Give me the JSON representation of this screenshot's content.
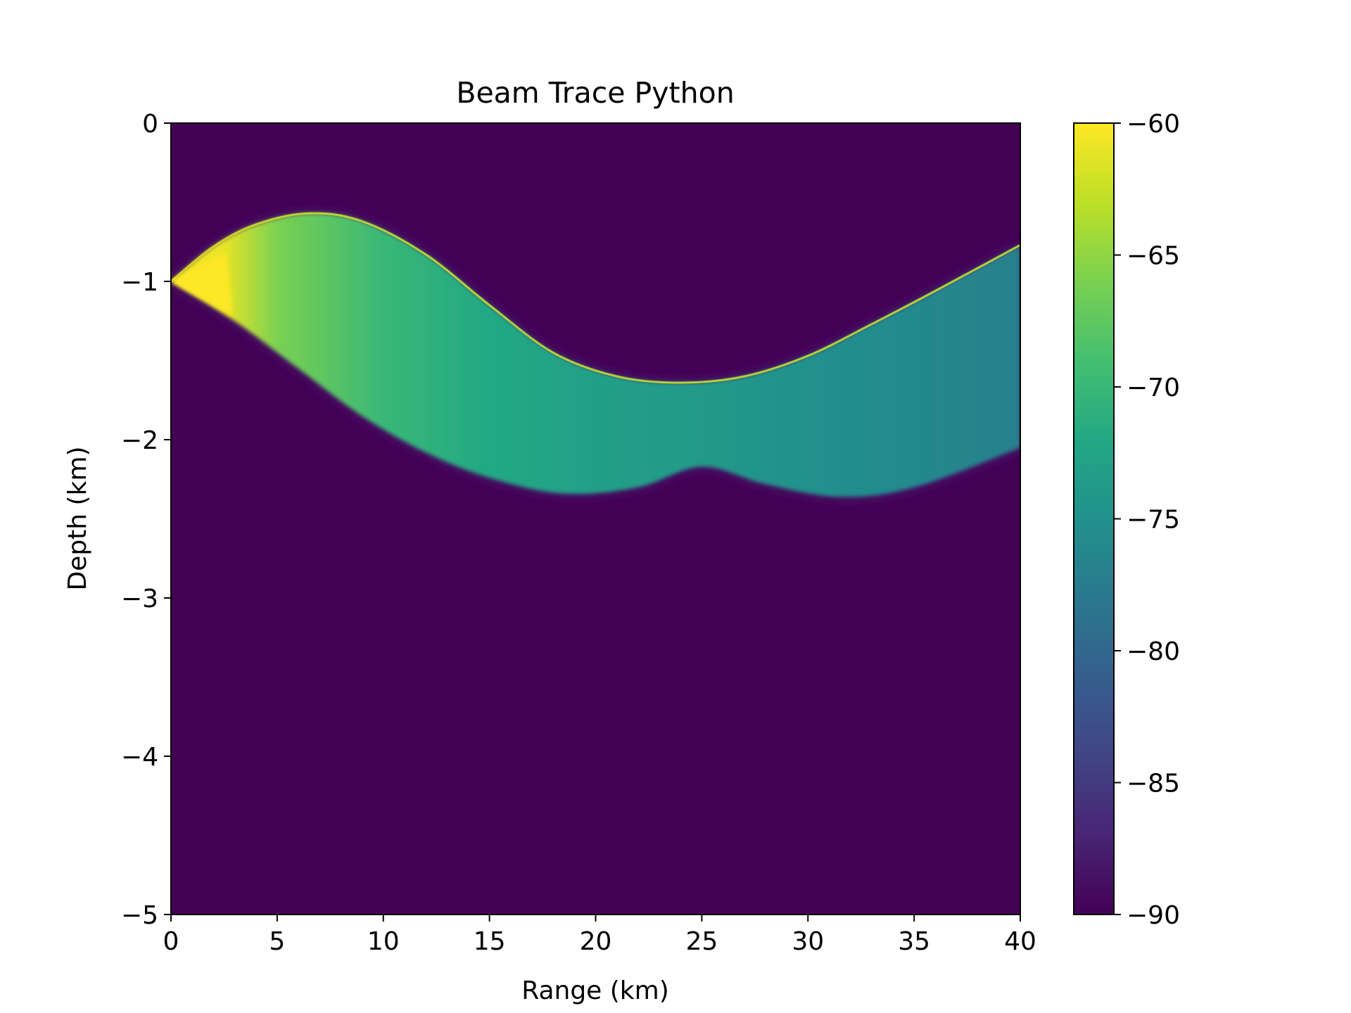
{
  "chart_data": {
    "type": "heatmap",
    "title": "Beam Trace Python",
    "xlabel": "Range (km)",
    "ylabel": "Depth (km)",
    "xlim": [
      0,
      40
    ],
    "ylim": [
      -5,
      0
    ],
    "x_ticks": [
      0,
      5,
      10,
      15,
      20,
      25,
      30,
      35,
      40
    ],
    "y_ticks": [
      0,
      -1,
      -2,
      -3,
      -4,
      -5
    ],
    "x_tick_labels": [
      "0",
      "5",
      "10",
      "15",
      "20",
      "25",
      "30",
      "35",
      "40"
    ],
    "y_tick_labels": [
      "0",
      "−1",
      "−2",
      "−3",
      "−4",
      "−5"
    ],
    "colormap": "viridis",
    "clim": [
      -90,
      -60
    ],
    "colorbar_ticks": [
      -60,
      -65,
      -70,
      -75,
      -80,
      -85,
      -90
    ],
    "colorbar_tick_labels": [
      "−60",
      "−65",
      "−70",
      "−75",
      "−80",
      "−85",
      "−90"
    ],
    "background_value": -90,
    "source": {
      "range_km": 0,
      "depth_km": -1.0
    },
    "beam": {
      "upper_edge": [
        {
          "x": 0,
          "y": -1.0
        },
        {
          "x": 2,
          "y": -0.78
        },
        {
          "x": 4,
          "y": -0.64
        },
        {
          "x": 6.5,
          "y": -0.57
        },
        {
          "x": 9,
          "y": -0.62
        },
        {
          "x": 12,
          "y": -0.83
        },
        {
          "x": 15,
          "y": -1.15
        },
        {
          "x": 18,
          "y": -1.45
        },
        {
          "x": 21,
          "y": -1.6
        },
        {
          "x": 24,
          "y": -1.64
        },
        {
          "x": 27,
          "y": -1.6
        },
        {
          "x": 30,
          "y": -1.47
        },
        {
          "x": 33,
          "y": -1.27
        },
        {
          "x": 36,
          "y": -1.06
        },
        {
          "x": 40,
          "y": -0.77
        }
      ],
      "lower_edge": [
        {
          "x": 0,
          "y": -1.0
        },
        {
          "x": 3,
          "y": -1.25
        },
        {
          "x": 6,
          "y": -1.55
        },
        {
          "x": 9,
          "y": -1.85
        },
        {
          "x": 12,
          "y": -2.08
        },
        {
          "x": 15,
          "y": -2.24
        },
        {
          "x": 18.5,
          "y": -2.34
        },
        {
          "x": 22,
          "y": -2.3
        },
        {
          "x": 25,
          "y": -2.17
        },
        {
          "x": 28,
          "y": -2.28
        },
        {
          "x": 31.5,
          "y": -2.36
        },
        {
          "x": 35,
          "y": -2.3
        },
        {
          "x": 40,
          "y": -2.05
        }
      ],
      "level_along_range": [
        {
          "x": 0,
          "value": -60
        },
        {
          "x": 2.5,
          "value": -61
        },
        {
          "x": 5,
          "value": -66
        },
        {
          "x": 10,
          "value": -70
        },
        {
          "x": 15,
          "value": -72
        },
        {
          "x": 20,
          "value": -73
        },
        {
          "x": 25,
          "value": -74
        },
        {
          "x": 30,
          "value": -75
        },
        {
          "x": 35,
          "value": -76
        },
        {
          "x": 40,
          "value": -77
        }
      ],
      "caustic_value": -62
    }
  }
}
